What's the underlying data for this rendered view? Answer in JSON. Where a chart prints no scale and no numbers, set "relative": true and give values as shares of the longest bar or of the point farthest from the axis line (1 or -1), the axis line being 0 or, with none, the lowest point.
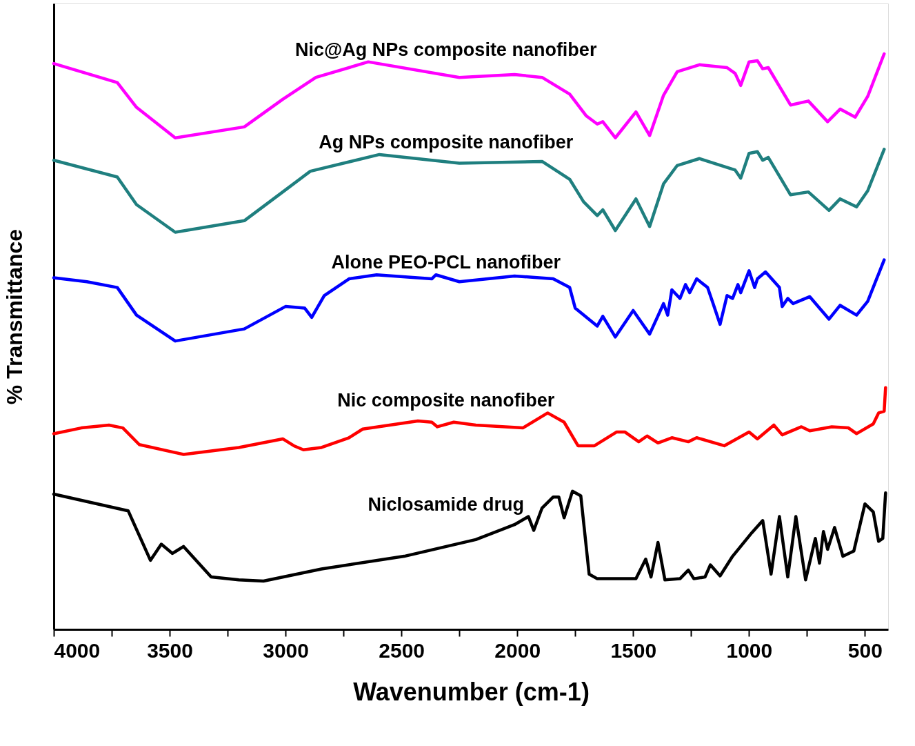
{
  "chart_data": {
    "type": "line",
    "relative": true,
    "xlabel": "Wavenumber (cm-1)",
    "ylabel": "% Transmittance",
    "xlim": [
      4000,
      400
    ],
    "xticks": [
      4000,
      {
        "value": 3750,
        "label": null
      },
      3500,
      {
        "value": 3250,
        "label": null
      },
      3000,
      {
        "value": 2750,
        "label": null
      },
      2500,
      {
        "value": 2250,
        "label": null
      },
      2000,
      {
        "value": 1750,
        "label": null
      },
      1500,
      {
        "value": 1250,
        "label": null
      },
      1000,
      {
        "value": 750,
        "label": null
      },
      500
    ],
    "line_style": "solid",
    "marker": "none",
    "series": [
      {
        "name": "Nic@Ag NPs composite nanofiber",
        "color": "#ff00ff",
        "x": [
          4000,
          3726,
          3643,
          3476,
          3178,
          3012,
          2869,
          2643,
          2250,
          2012,
          1893,
          1774,
          1702,
          1655,
          1631,
          1577,
          1488,
          1429,
          1369,
          1310,
          1214,
          1095,
          1060,
          1036,
          1000,
          964,
          941,
          917,
          821,
          744,
          661,
          607,
          542,
          488,
          417
        ],
        "values": [
          0.983,
          0.95,
          0.907,
          0.854,
          0.873,
          0.921,
          0.959,
          0.986,
          0.959,
          0.964,
          0.959,
          0.93,
          0.892,
          0.878,
          0.882,
          0.854,
          0.899,
          0.858,
          0.928,
          0.969,
          0.981,
          0.976,
          0.966,
          0.945,
          0.986,
          0.988,
          0.974,
          0.976,
          0.911,
          0.918,
          0.882,
          0.904,
          0.89,
          0.926,
          1.0
        ]
      },
      {
        "name": "Ag NPs composite nanofiber",
        "color": "#1f7f7f",
        "x": [
          4000,
          3726,
          3643,
          3476,
          3178,
          3012,
          2893,
          2595,
          2250,
          1893,
          1774,
          1714,
          1655,
          1631,
          1577,
          1488,
          1429,
          1369,
          1310,
          1214,
          1060,
          1036,
          1000,
          964,
          941,
          917,
          821,
          744,
          655,
          607,
          536,
          488,
          417
        ],
        "values": [
          0.815,
          0.786,
          0.738,
          0.69,
          0.71,
          0.76,
          0.796,
          0.825,
          0.81,
          0.813,
          0.782,
          0.743,
          0.719,
          0.729,
          0.693,
          0.748,
          0.7,
          0.774,
          0.806,
          0.818,
          0.798,
          0.784,
          0.827,
          0.83,
          0.815,
          0.82,
          0.755,
          0.76,
          0.728,
          0.748,
          0.734,
          0.762,
          0.834
        ]
      },
      {
        "name": "Alone PEO-PCL nanofiber",
        "color": "#0000ff",
        "x": [
          4000,
          3857,
          3726,
          3643,
          3476,
          3178,
          3000,
          2917,
          2887,
          2833,
          2726,
          2607,
          2369,
          2351,
          2250,
          2012,
          1845,
          1774,
          1750,
          1655,
          1631,
          1577,
          1500,
          1429,
          1369,
          1351,
          1333,
          1298,
          1274,
          1256,
          1226,
          1179,
          1155,
          1125,
          1095,
          1071,
          1048,
          1036,
          1000,
          976,
          964,
          929,
          869,
          857,
          833,
          810,
          738,
          655,
          607,
          536,
          488,
          417
        ],
        "values": [
          0.611,
          0.604,
          0.594,
          0.546,
          0.501,
          0.522,
          0.561,
          0.558,
          0.542,
          0.58,
          0.609,
          0.616,
          0.609,
          0.616,
          0.604,
          0.614,
          0.609,
          0.594,
          0.558,
          0.527,
          0.544,
          0.508,
          0.554,
          0.513,
          0.566,
          0.546,
          0.59,
          0.575,
          0.599,
          0.585,
          0.609,
          0.594,
          0.566,
          0.53,
          0.58,
          0.575,
          0.599,
          0.585,
          0.623,
          0.594,
          0.609,
          0.621,
          0.594,
          0.561,
          0.575,
          0.566,
          0.578,
          0.539,
          0.563,
          0.546,
          0.57,
          0.642
        ]
      },
      {
        "name": "Nic composite nanofiber",
        "color": "#ff0000",
        "x": [
          4000,
          3881,
          3762,
          3702,
          3631,
          3440,
          3202,
          3012,
          2964,
          2923,
          2845,
          2726,
          2667,
          2429,
          2369,
          2345,
          2274,
          2179,
          1976,
          1869,
          1798,
          1738,
          1667,
          1571,
          1536,
          1476,
          1440,
          1393,
          1333,
          1262,
          1226,
          1107,
          1000,
          964,
          893,
          857,
          774,
          738,
          643,
          571,
          536,
          464,
          441,
          417,
          411
        ],
        "values": [
          0.34,
          0.35,
          0.355,
          0.35,
          0.321,
          0.304,
          0.316,
          0.331,
          0.319,
          0.312,
          0.316,
          0.333,
          0.348,
          0.362,
          0.36,
          0.352,
          0.36,
          0.355,
          0.35,
          0.376,
          0.36,
          0.319,
          0.319,
          0.343,
          0.343,
          0.326,
          0.336,
          0.324,
          0.333,
          0.326,
          0.333,
          0.319,
          0.343,
          0.331,
          0.355,
          0.338,
          0.352,
          0.345,
          0.352,
          0.35,
          0.34,
          0.357,
          0.376,
          0.379,
          0.42
        ]
      },
      {
        "name": "Niclosamide drug",
        "color": "#000000",
        "x": [
          4000,
          3679,
          3583,
          3536,
          3488,
          3440,
          3321,
          3202,
          3095,
          2845,
          2488,
          2179,
          2012,
          1952,
          1929,
          1893,
          1845,
          1821,
          1798,
          1762,
          1726,
          1690,
          1655,
          1488,
          1446,
          1423,
          1393,
          1363,
          1298,
          1262,
          1238,
          1190,
          1167,
          1125,
          1071,
          988,
          941,
          905,
          869,
          833,
          798,
          756,
          714,
          696,
          679,
          661,
          631,
          595,
          548,
          500,
          464,
          441,
          423,
          411
        ],
        "values": [
          0.235,
          0.206,
          0.12,
          0.148,
          0.132,
          0.144,
          0.091,
          0.086,
          0.084,
          0.105,
          0.127,
          0.156,
          0.182,
          0.196,
          0.172,
          0.211,
          0.23,
          0.23,
          0.194,
          0.24,
          0.232,
          0.096,
          0.088,
          0.088,
          0.122,
          0.091,
          0.151,
          0.086,
          0.088,
          0.103,
          0.088,
          0.091,
          0.112,
          0.093,
          0.127,
          0.168,
          0.189,
          0.096,
          0.196,
          0.091,
          0.196,
          0.086,
          0.158,
          0.115,
          0.17,
          0.139,
          0.177,
          0.127,
          0.136,
          0.218,
          0.204,
          0.153,
          0.158,
          0.237
        ]
      }
    ]
  }
}
